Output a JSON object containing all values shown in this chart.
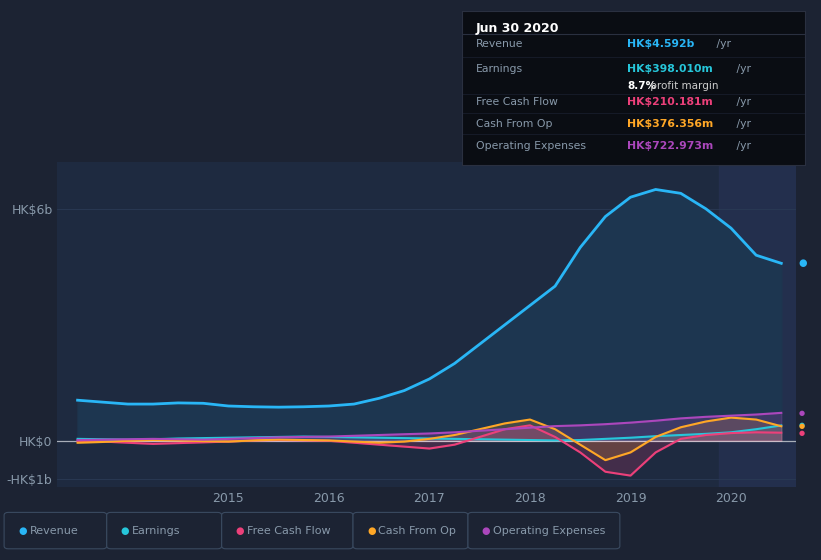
{
  "bg_color": "#1c2333",
  "plot_bg_color": "#1e2a40",
  "grid_color": "#2a3a55",
  "text_color": "#8899aa",
  "ylim": [
    -1200000000.0,
    7200000000.0
  ],
  "yticks": [
    -1000000000.0,
    0,
    6000000000.0
  ],
  "ytick_labels": [
    "-HK$1b",
    "HK$0",
    "HK$6b"
  ],
  "x_data": [
    2013.5,
    2013.75,
    2014.0,
    2014.25,
    2014.5,
    2014.75,
    2015.0,
    2015.25,
    2015.5,
    2015.75,
    2016.0,
    2016.25,
    2016.5,
    2016.75,
    2017.0,
    2017.25,
    2017.5,
    2017.75,
    2018.0,
    2018.25,
    2018.5,
    2018.75,
    2019.0,
    2019.25,
    2019.5,
    2019.75,
    2020.0,
    2020.25,
    2020.5
  ],
  "revenue": [
    1050000000.0,
    1000000000.0,
    950000000.0,
    950000000.0,
    980000000.0,
    970000000.0,
    900000000.0,
    880000000.0,
    870000000.0,
    880000000.0,
    900000000.0,
    950000000.0,
    1100000000.0,
    1300000000.0,
    1600000000.0,
    2000000000.0,
    2500000000.0,
    3000000000.0,
    3500000000.0,
    4000000000.0,
    5000000000.0,
    5800000000.0,
    6300000000.0,
    6500000000.0,
    6400000000.0,
    6000000000.0,
    5500000000.0,
    4800000000.0,
    4590000000.0
  ],
  "earnings": [
    50000000.0,
    40000000.0,
    30000000.0,
    40000000.0,
    60000000.0,
    70000000.0,
    80000000.0,
    90000000.0,
    100000000.0,
    110000000.0,
    100000000.0,
    90000000.0,
    80000000.0,
    70000000.0,
    60000000.0,
    50000000.0,
    40000000.0,
    30000000.0,
    20000000.0,
    10000000.0,
    20000000.0,
    50000000.0,
    80000000.0,
    120000000.0,
    150000000.0,
    180000000.0,
    220000000.0,
    300000000.0,
    398000000.0
  ],
  "free_cash_flow": [
    -10000000.0,
    -20000000.0,
    -50000000.0,
    -80000000.0,
    -60000000.0,
    -40000000.0,
    -20000000.0,
    10000000.0,
    20000000.0,
    10000000.0,
    0.0,
    -50000000.0,
    -100000000.0,
    -150000000.0,
    -200000000.0,
    -100000000.0,
    100000000.0,
    300000000.0,
    400000000.0,
    100000000.0,
    -300000000.0,
    -800000000.0,
    -900000000.0,
    -300000000.0,
    50000000.0,
    150000000.0,
    200000000.0,
    220000000.0,
    210000000.0
  ],
  "cash_from_op": [
    -50000000.0,
    -30000000.0,
    0.0,
    20000000.0,
    10000000.0,
    -10000000.0,
    -20000000.0,
    10000000.0,
    30000000.0,
    20000000.0,
    10000000.0,
    -20000000.0,
    -50000000.0,
    -20000000.0,
    50000000.0,
    150000000.0,
    300000000.0,
    450000000.0,
    550000000.0,
    300000000.0,
    -100000000.0,
    -500000000.0,
    -300000000.0,
    100000000.0,
    350000000.0,
    500000000.0,
    600000000.0,
    550000000.0,
    376000000.0
  ],
  "op_expenses": [
    20000000.0,
    30000000.0,
    40000000.0,
    50000000.0,
    40000000.0,
    30000000.0,
    50000000.0,
    70000000.0,
    90000000.0,
    100000000.0,
    110000000.0,
    130000000.0,
    150000000.0,
    170000000.0,
    190000000.0,
    220000000.0,
    260000000.0,
    300000000.0,
    340000000.0,
    380000000.0,
    400000000.0,
    430000000.0,
    470000000.0,
    520000000.0,
    580000000.0,
    620000000.0,
    650000000.0,
    680000000.0,
    723000000.0
  ],
  "revenue_color": "#29b6f6",
  "earnings_color": "#26c6da",
  "fcf_color": "#ec407a",
  "cash_op_color": "#ffa726",
  "op_exp_color": "#ab47bc",
  "revenue_fill": "#1d3650",
  "legend_items": [
    {
      "label": "Revenue",
      "color": "#29b6f6"
    },
    {
      "label": "Earnings",
      "color": "#26c6da"
    },
    {
      "label": "Free Cash Flow",
      "color": "#ec407a"
    },
    {
      "label": "Cash From Op",
      "color": "#ffa726"
    },
    {
      "label": "Operating Expenses",
      "color": "#ab47bc"
    }
  ],
  "tooltip_title": "Jun 30 2020",
  "tooltip_rows": [
    {
      "label": "Revenue",
      "value": "HK$4.592b",
      "suffix": " /yr",
      "color": "#29b6f6",
      "sub": null
    },
    {
      "label": "Earnings",
      "value": "HK$398.010m",
      "suffix": " /yr",
      "color": "#26c6da",
      "sub": "8.7% profit margin"
    },
    {
      "label": "Free Cash Flow",
      "value": "HK$210.181m",
      "suffix": " /yr",
      "color": "#ec407a",
      "sub": null
    },
    {
      "label": "Cash From Op",
      "value": "HK$376.356m",
      "suffix": " /yr",
      "color": "#ffa726",
      "sub": null
    },
    {
      "label": "Operating Expenses",
      "value": "HK$722.973m",
      "suffix": " /yr",
      "color": "#ab47bc",
      "sub": null
    }
  ]
}
